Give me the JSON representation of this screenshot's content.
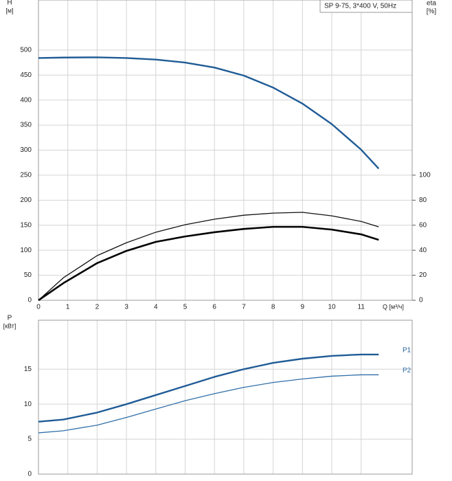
{
  "chart_data": [
    {
      "type": "line",
      "y_label": "H",
      "y_unit": "[м]",
      "y2_label": "eta",
      "y2_unit": "[%]",
      "x_label": "Q [м³/ч]",
      "annotation": "SP 9-75, 3*400 V, 50Hz",
      "x": [
        0,
        0.85,
        2,
        3,
        4,
        5,
        6,
        7,
        8,
        9,
        10,
        11,
        11.6
      ],
      "xlim": [
        0,
        12.74
      ],
      "xticks": [
        0,
        1,
        2,
        3,
        4,
        5,
        6,
        7,
        8,
        9,
        10,
        11
      ],
      "ylim": [
        0,
        600
      ],
      "yticks": [
        0,
        50,
        100,
        150,
        200,
        250,
        300,
        350,
        400,
        450,
        500
      ],
      "y2lim": [
        0,
        240
      ],
      "y2ticks": [
        0,
        20,
        40,
        60,
        80,
        100
      ],
      "grid": true,
      "series": [
        {
          "color": "#1f5b96",
          "values": [
            484,
            485,
            485.5,
            484,
            481,
            475,
            465,
            449,
            425,
            393,
            352,
            301,
            263
          ]
        },
        {
          "color": "#111111",
          "axis": "y2",
          "values": [
            0,
            18,
            35.7,
            46,
            54.4,
            60.4,
            64.8,
            68,
            69.7,
            70.3,
            67.5,
            63,
            58.7
          ]
        },
        {
          "color": "#000000",
          "axis": "y2",
          "values": [
            0,
            13.7,
            29.7,
            39.5,
            46.7,
            51,
            54.4,
            57,
            58.7,
            58.7,
            56.5,
            52.7,
            48.3
          ]
        }
      ]
    },
    {
      "type": "line",
      "y_label": "P",
      "y_unit": "[кВт]",
      "x": [
        0,
        0.85,
        2,
        3,
        4,
        5,
        6,
        7,
        8,
        9,
        10,
        11,
        11.6
      ],
      "xlim": [
        0,
        12.74
      ],
      "xticks": [
        0,
        1,
        2,
        3,
        4,
        5,
        6,
        7,
        8,
        9,
        10,
        11
      ],
      "ylim": [
        0,
        22
      ],
      "yticks": [
        0,
        5,
        10,
        15
      ],
      "grid": true,
      "series": [
        {
          "name": "P1",
          "color": "#1f5b96",
          "values": [
            7.5,
            7.8,
            8.8,
            10.0,
            11.3,
            12.6,
            13.9,
            15.0,
            15.9,
            16.5,
            16.9,
            17.1,
            17.1
          ]
        },
        {
          "name": "P2",
          "color": "#2f6ea8",
          "values": [
            5.9,
            6.2,
            7.0,
            8.1,
            9.3,
            10.5,
            11.5,
            12.4,
            13.1,
            13.6,
            14.0,
            14.2,
            14.2
          ]
        }
      ]
    }
  ]
}
